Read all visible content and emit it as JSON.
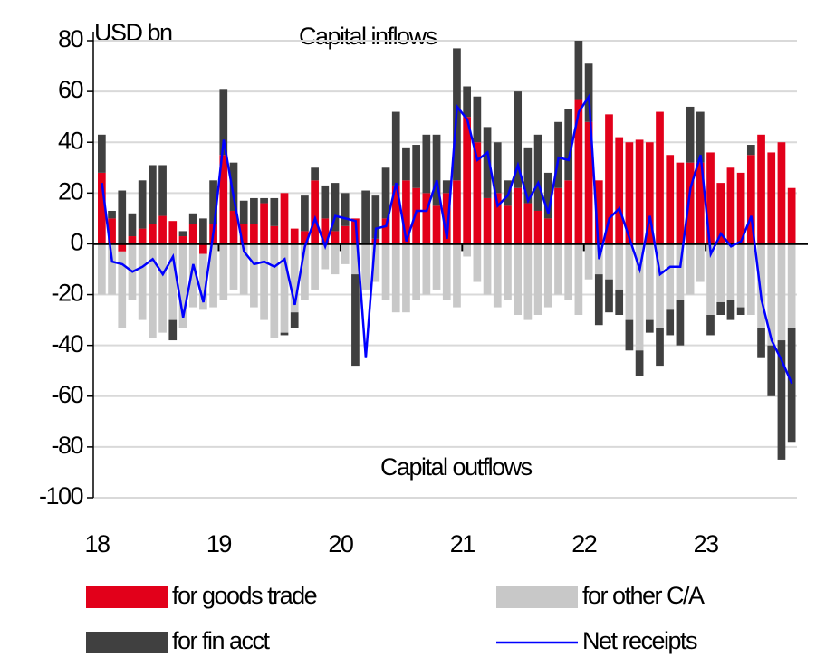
{
  "chart_data": {
    "type": "bar",
    "y_label": "USD bn",
    "annotations": [
      "Capital inflows",
      "Capital outflows"
    ],
    "categories": [
      "18",
      null,
      null,
      null,
      null,
      null,
      null,
      null,
      null,
      null,
      null,
      null,
      "19",
      null,
      null,
      null,
      null,
      null,
      null,
      null,
      null,
      null,
      null,
      null,
      "20",
      null,
      null,
      null,
      null,
      null,
      null,
      null,
      null,
      null,
      null,
      null,
      "21",
      null,
      null,
      null,
      null,
      null,
      null,
      null,
      null,
      null,
      null,
      null,
      "22",
      null,
      null,
      null,
      null,
      null,
      null,
      null,
      null,
      null,
      null,
      null,
      "23",
      null,
      null,
      null,
      null,
      null,
      null,
      null,
      null
    ],
    "ylim": [
      -100,
      80
    ],
    "yticks": [
      -100,
      -80,
      -60,
      -40,
      -20,
      0,
      20,
      40,
      60,
      80
    ],
    "grid": true,
    "series": [
      {
        "name": "for goods trade",
        "type": "bar",
        "color": "#e2001a",
        "values": [
          28,
          10,
          -3,
          3,
          6,
          8,
          11,
          9,
          3,
          8,
          -4,
          8,
          35,
          13,
          8,
          8,
          16,
          7,
          20,
          6,
          5,
          25,
          10,
          5,
          7,
          10,
          0,
          2,
          10,
          23,
          25,
          22,
          20,
          15,
          20,
          25,
          50,
          40,
          18,
          20,
          15,
          22,
          16,
          13,
          10,
          22,
          25,
          57,
          48,
          25,
          51,
          42,
          40,
          41,
          40,
          52,
          35,
          32,
          32,
          32,
          36,
          24,
          30,
          28,
          35,
          43,
          36,
          40,
          22
        ]
      },
      {
        "name": "for other C/A",
        "type": "bar",
        "color": "#c8c8c8",
        "values": [
          -20,
          -20,
          -30,
          -22,
          -30,
          -37,
          -35,
          -30,
          -33,
          -25,
          -22,
          -25,
          -22,
          -18,
          -20,
          -25,
          -30,
          -37,
          -35,
          -27,
          -22,
          -18,
          -10,
          -12,
          -8,
          -12,
          -18,
          -15,
          -22,
          -27,
          -27,
          -22,
          -20,
          -18,
          -22,
          -25,
          -5,
          -15,
          -20,
          -25,
          -22,
          -28,
          -30,
          -28,
          -25,
          -20,
          -22,
          -28,
          -14,
          -12,
          -14,
          -18,
          -30,
          -42,
          -30,
          -33,
          -26,
          -22,
          -20,
          -15,
          -28,
          -23,
          -22,
          -25,
          -28,
          -33,
          -40,
          -38,
          -33
        ]
      },
      {
        "name": "for fin acct",
        "type": "bar",
        "color": "#404040",
        "values": [
          15,
          3,
          21,
          9,
          19,
          23,
          20,
          -8,
          2,
          4,
          10,
          17,
          26,
          19,
          9,
          10,
          2,
          11,
          -1,
          -6,
          14,
          5,
          13,
          19,
          13,
          -36,
          21,
          17,
          20,
          29,
          13,
          17,
          23,
          28,
          5,
          52,
          12,
          18,
          28,
          20,
          10,
          38,
          22,
          30,
          18,
          26,
          28,
          23,
          23,
          -20,
          -13,
          -10,
          -12,
          -10,
          -5,
          -15,
          -10,
          -18,
          22,
          20,
          -8,
          -5,
          -8,
          -3,
          4,
          -12,
          -20,
          -47,
          -45
        ]
      },
      {
        "name": "Net receipts",
        "type": "line",
        "color": "#0000ff",
        "values": [
          24,
          -7,
          -8,
          -11,
          -9,
          -6,
          -12,
          -5,
          -29,
          -8,
          -23,
          5,
          41,
          18,
          -3,
          -8,
          -7,
          -9,
          -6,
          -24,
          -1,
          10,
          -1,
          11,
          10,
          9,
          -45,
          6,
          7,
          24,
          1,
          13,
          13,
          25,
          2,
          54,
          49,
          33,
          36,
          15,
          19,
          31,
          17,
          24,
          12,
          34,
          33,
          52,
          58,
          -6,
          10,
          14,
          2,
          -10,
          11,
          -12,
          -9,
          -9,
          22,
          35,
          -4,
          4,
          -1,
          1,
          11,
          -22,
          -38,
          -46,
          -55
        ]
      }
    ]
  }
}
